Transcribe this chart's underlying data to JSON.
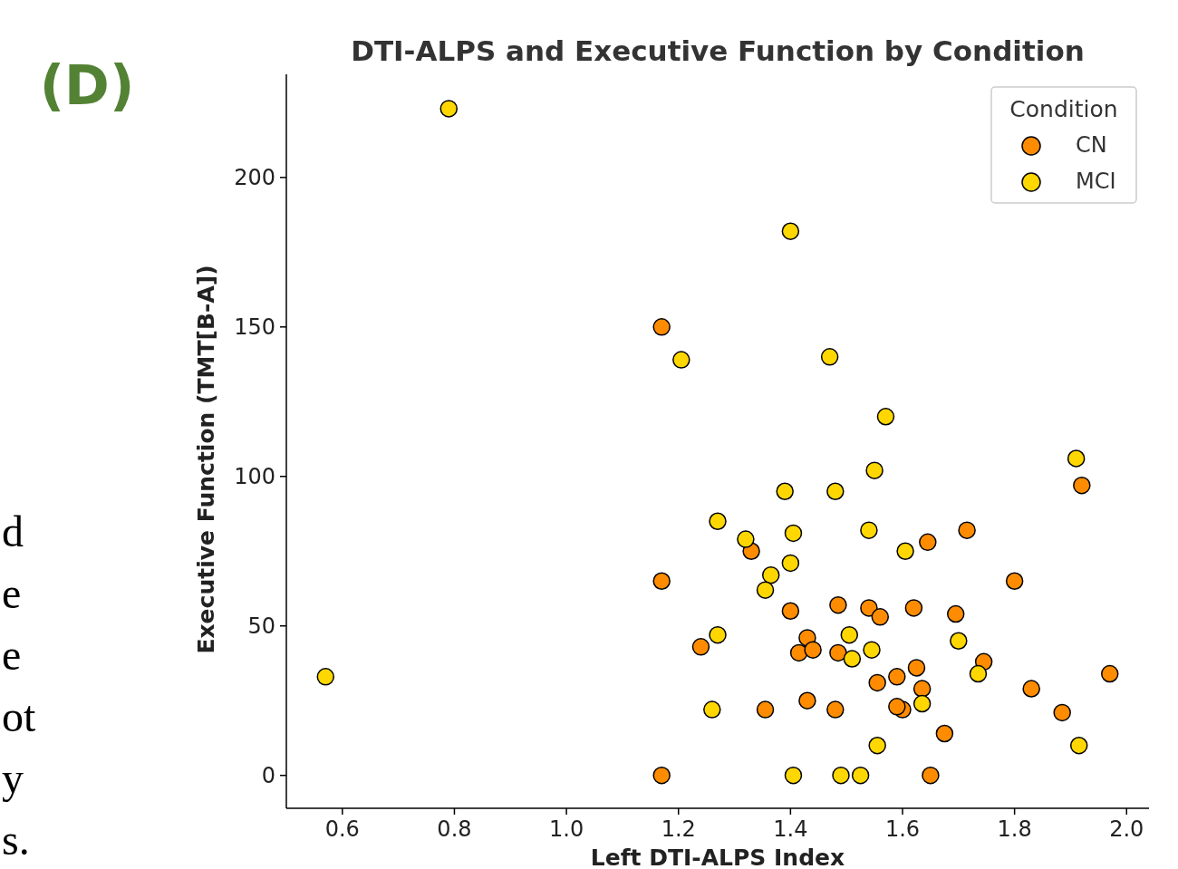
{
  "chart_data": {
    "type": "scatter",
    "title": "DTI-ALPS and Executive Function by Condition",
    "xlabel": "Left DTI-ALPS Index",
    "ylabel": "Executive Function (TMT[B-A])",
    "legend_title": "Condition",
    "annotations": [
      "(D)",
      "d",
      "e",
      "e",
      "ot",
      "y",
      "s."
    ],
    "xlim": [
      0.5,
      2.04
    ],
    "xticks": [
      {
        "value": 0.6,
        "label": "0.6"
      },
      {
        "value": 0.8,
        "label": "0.8"
      },
      {
        "value": 1.0,
        "label": "1.0"
      },
      {
        "value": 1.2,
        "label": "1.2"
      },
      {
        "value": 1.4,
        "label": "1.4"
      },
      {
        "value": 1.6,
        "label": "1.6"
      },
      {
        "value": 1.8,
        "label": "1.8"
      },
      {
        "value": 2.0,
        "label": "2.0"
      }
    ],
    "ylim": [
      -11,
      234.5
    ],
    "yticks": [
      0,
      50,
      100,
      150,
      200
    ],
    "grid": false,
    "legend": "top right",
    "marker": "circle",
    "series": [
      {
        "name": "CN",
        "color": "#ff8c00",
        "x": [
          1.17,
          1.92,
          1.715,
          1.645,
          1.33,
          1.17,
          1.8,
          1.4,
          1.485,
          1.54,
          1.56,
          1.62,
          1.695,
          1.43,
          1.24,
          1.415,
          1.44,
          1.485,
          1.745,
          1.625,
          1.97,
          1.59,
          1.555,
          1.635,
          1.83,
          1.43,
          1.6,
          1.59,
          1.355,
          1.48,
          1.885,
          1.675,
          1.17,
          1.65
        ],
        "values": [
          150,
          97,
          82,
          78,
          75,
          65,
          65,
          55,
          57,
          56,
          53,
          56,
          54,
          46,
          43,
          41,
          42,
          41,
          38,
          36,
          34,
          33,
          31,
          29,
          29,
          25,
          22,
          23,
          22,
          22,
          21,
          14,
          0,
          0
        ]
      },
      {
        "name": "MCI",
        "color": "#ffd700",
        "x": [
          0.79,
          0.57,
          1.4,
          1.205,
          1.47,
          1.57,
          1.91,
          1.55,
          1.39,
          1.48,
          1.27,
          1.54,
          1.405,
          1.32,
          1.605,
          1.4,
          1.365,
          1.355,
          1.27,
          1.505,
          1.51,
          1.545,
          1.7,
          1.735,
          1.635,
          1.26,
          1.555,
          1.915,
          1.405,
          1.49,
          1.525
        ],
        "values": [
          223,
          33,
          182,
          139,
          140,
          120,
          106,
          102,
          95,
          95,
          85,
          82,
          81,
          79,
          75,
          71,
          67,
          62,
          47,
          47,
          39,
          42,
          45,
          34,
          24,
          22,
          10,
          10,
          0,
          0,
          0
        ]
      }
    ]
  }
}
